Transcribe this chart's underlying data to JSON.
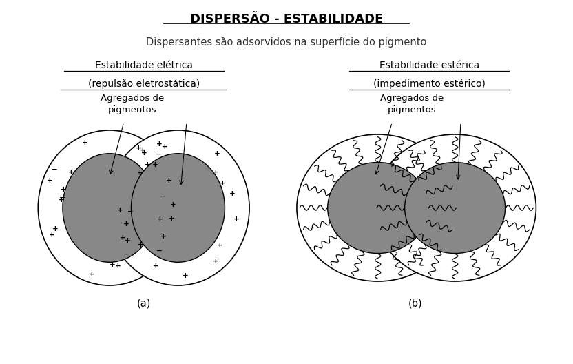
{
  "title": "DISPERSÃO - ESTABILIDADE",
  "subtitle": "Dispersantes são adsorvidos na superfície do pigmento",
  "left_label1": "Estabilidade elétrica",
  "left_label2": "(repulsão eletrostática)",
  "right_label1": "Estabilidade estérica",
  "right_label2": "(impedimento estérico)",
  "agg_label_left": "Agregados de\npigmentos",
  "agg_label_right": "Agregados de\npigmentos",
  "caption_a": "(a)",
  "caption_b": "(b)",
  "bg_color": "#ffffff",
  "inner_circle_color": "#888888",
  "fig_width": 8.32,
  "fig_height": 5.28,
  "dpi": 100
}
